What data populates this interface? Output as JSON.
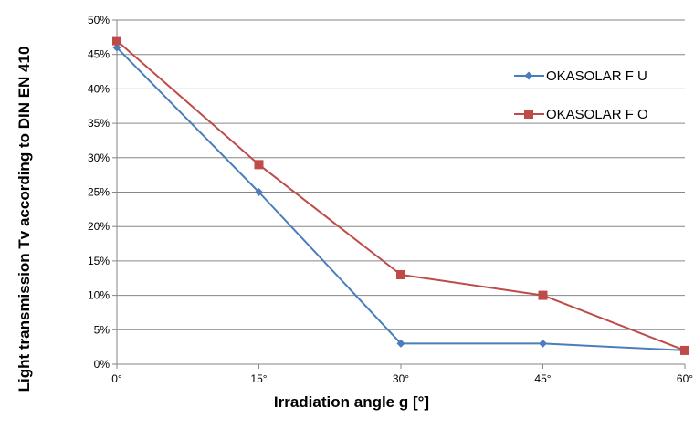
{
  "chart_data": {
    "type": "line",
    "title": "",
    "xlabel": "Irradiation angle ɡ  [°]",
    "ylabel": "Light transmission Tv according to DIN EN 410",
    "categories": [
      "0°",
      "15°",
      "30°",
      "45°",
      "60°"
    ],
    "y_ticks": [
      "0%",
      "5%",
      "10%",
      "15%",
      "20%",
      "25%",
      "30%",
      "35%",
      "40%",
      "45%",
      "50%"
    ],
    "ylim": [
      0,
      50
    ],
    "grid": true,
    "legend_position": "right",
    "series": [
      {
        "name": "OKASOLAR F U",
        "values": [
          46,
          25,
          3,
          3,
          2
        ],
        "color": "#4a7ebb",
        "marker": "diamond"
      },
      {
        "name": "OKASOLAR F O",
        "values": [
          47,
          29,
          13,
          10,
          2
        ],
        "color": "#be4b48",
        "marker": "square"
      }
    ]
  }
}
